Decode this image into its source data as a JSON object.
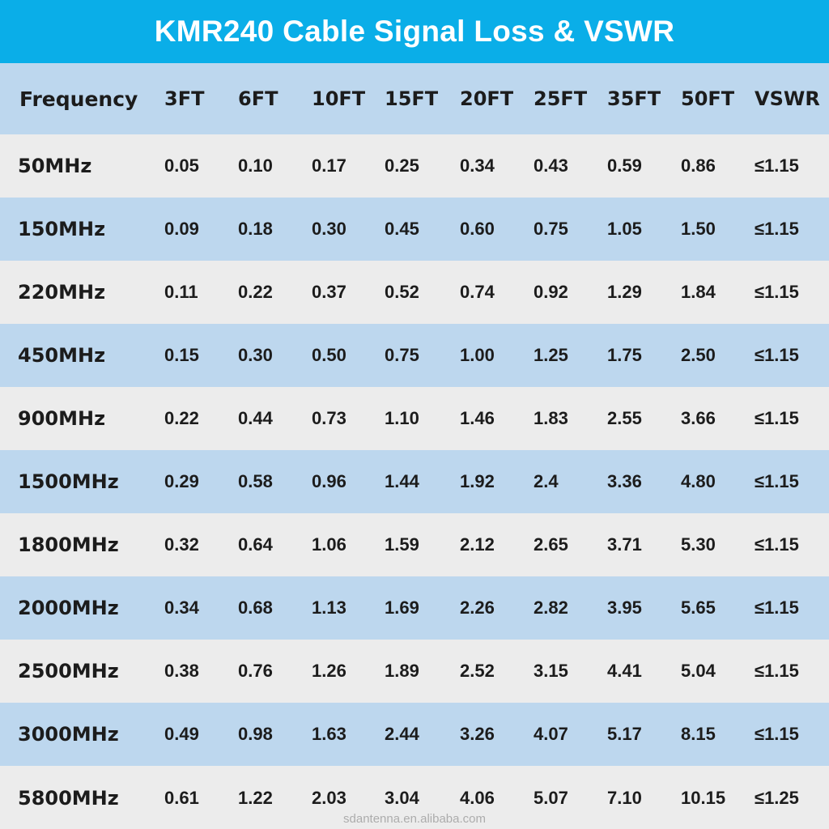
{
  "title": "KMR240 Cable Signal Loss & VSWR",
  "watermark": "sdantenna.en.alibaba.com",
  "colors": {
    "title_bar": "#0aaee8",
    "title_text": "#ffffff",
    "header_row": "#bdd7ee",
    "row_light": "#ececec",
    "row_blue": "#bdd7ee",
    "text": "#1c1c1c"
  },
  "table": {
    "headers": [
      "Frequency",
      "3FT",
      "6FT",
      "10FT",
      "15FT",
      "20FT",
      "25FT",
      "35FT",
      "50FT",
      "VSWR"
    ],
    "rows": [
      [
        "50MHz",
        "0.05",
        "0.10",
        "0.17",
        "0.25",
        "0.34",
        "0.43",
        "0.59",
        "0.86",
        "≤1.15"
      ],
      [
        "150MHz",
        "0.09",
        "0.18",
        "0.30",
        "0.45",
        "0.60",
        "0.75",
        "1.05",
        "1.50",
        "≤1.15"
      ],
      [
        "220MHz",
        "0.11",
        "0.22",
        "0.37",
        "0.52",
        "0.74",
        "0.92",
        "1.29",
        "1.84",
        "≤1.15"
      ],
      [
        "450MHz",
        "0.15",
        "0.30",
        "0.50",
        "0.75",
        "1.00",
        "1.25",
        "1.75",
        "2.50",
        "≤1.15"
      ],
      [
        "900MHz",
        "0.22",
        "0.44",
        "0.73",
        "1.10",
        "1.46",
        "1.83",
        "2.55",
        "3.66",
        "≤1.15"
      ],
      [
        "1500MHz",
        "0.29",
        "0.58",
        "0.96",
        "1.44",
        "1.92",
        "2.4",
        "3.36",
        "4.80",
        "≤1.15"
      ],
      [
        "1800MHz",
        "0.32",
        "0.64",
        "1.06",
        "1.59",
        "2.12",
        "2.65",
        "3.71",
        "5.30",
        "≤1.15"
      ],
      [
        "2000MHz",
        "0.34",
        "0.68",
        "1.13",
        "1.69",
        "2.26",
        "2.82",
        "3.95",
        "5.65",
        "≤1.15"
      ],
      [
        "2500MHz",
        "0.38",
        "0.76",
        "1.26",
        "1.89",
        "2.52",
        "3.15",
        "4.41",
        "5.04",
        "≤1.15"
      ],
      [
        "3000MHz",
        "0.49",
        "0.98",
        "1.63",
        "2.44",
        "3.26",
        "4.07",
        "5.17",
        "8.15",
        "≤1.15"
      ],
      [
        "5800MHz",
        "0.61",
        "1.22",
        "2.03",
        "3.04",
        "4.06",
        "5.07",
        "7.10",
        "10.15",
        "≤1.25"
      ]
    ]
  }
}
